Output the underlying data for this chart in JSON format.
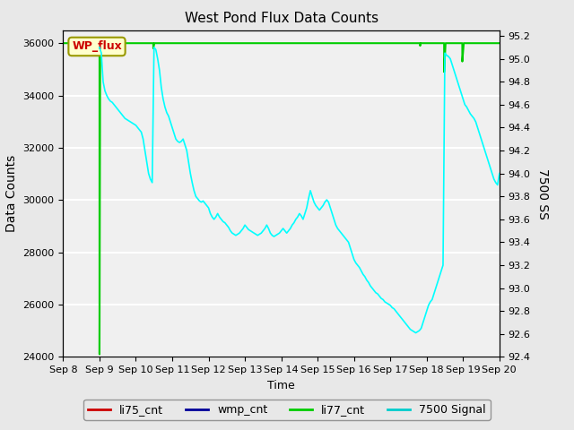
{
  "title": "West Pond Flux Data Counts",
  "xlabel": "Time",
  "ylabel_left": "Data Counts",
  "ylabel_right": "7500 SS",
  "ylim_left": [
    24000,
    36500
  ],
  "ylim_right": [
    92.4,
    95.25
  ],
  "x_tick_labels": [
    "Sep 8",
    "Sep 9",
    "Sep 10",
    "Sep 11",
    "Sep 12",
    "Sep 13",
    "Sep 14",
    "Sep 15",
    "Sep 16",
    "Sep 17",
    "Sep 18",
    "Sep 19",
    "Sep 20"
  ],
  "yticks_left": [
    24000,
    26000,
    28000,
    30000,
    32000,
    34000,
    36000
  ],
  "yticks_right": [
    92.4,
    92.6,
    92.8,
    93.0,
    93.2,
    93.4,
    93.6,
    93.8,
    94.0,
    94.2,
    94.4,
    94.6,
    94.8,
    95.0,
    95.2
  ],
  "bg_color": "#e8e8e8",
  "plot_bg_color": "#f0f0f0",
  "legend_entries": [
    "li75_cnt",
    "wmp_cnt",
    "li77_cnt",
    "7500 Signal"
  ],
  "legend_colors": [
    "#cc0000",
    "#000099",
    "#00cc00",
    "#00cccc"
  ],
  "li77_x": [
    0.0,
    1.0,
    1.0,
    1.02,
    2.48,
    2.48,
    2.51,
    9.82,
    9.82,
    9.84,
    10.48,
    10.48,
    10.52,
    10.98,
    10.98,
    11.02,
    12.0
  ],
  "li77_y": [
    36000,
    36000,
    24100,
    36000,
    36000,
    35800,
    36000,
    36000,
    35900,
    36000,
    36000,
    34900,
    36000,
    36000,
    35300,
    36000,
    36000
  ],
  "signal_x": [
    1.0,
    1.02,
    1.05,
    1.1,
    1.15,
    1.2,
    1.25,
    1.3,
    1.35,
    1.4,
    1.45,
    1.5,
    1.55,
    1.6,
    1.65,
    1.7,
    1.75,
    1.8,
    1.85,
    1.9,
    1.95,
    2.0,
    2.05,
    2.1,
    2.15,
    2.2,
    2.25,
    2.3,
    2.35,
    2.4,
    2.45,
    2.5,
    2.55,
    2.6,
    2.65,
    2.7,
    2.75,
    2.8,
    2.85,
    2.9,
    2.95,
    3.0,
    3.05,
    3.1,
    3.15,
    3.2,
    3.25,
    3.3,
    3.35,
    3.4,
    3.45,
    3.5,
    3.55,
    3.6,
    3.65,
    3.7,
    3.75,
    3.8,
    3.85,
    3.9,
    3.95,
    4.0,
    4.05,
    4.1,
    4.15,
    4.2,
    4.25,
    4.3,
    4.35,
    4.4,
    4.45,
    4.5,
    4.55,
    4.6,
    4.65,
    4.7,
    4.75,
    4.8,
    4.85,
    4.9,
    4.95,
    5.0,
    5.05,
    5.1,
    5.15,
    5.2,
    5.25,
    5.3,
    5.35,
    5.4,
    5.45,
    5.5,
    5.55,
    5.6,
    5.65,
    5.7,
    5.75,
    5.8,
    5.85,
    5.9,
    5.95,
    6.0,
    6.05,
    6.1,
    6.15,
    6.2,
    6.25,
    6.3,
    6.35,
    6.4,
    6.45,
    6.5,
    6.55,
    6.6,
    6.65,
    6.7,
    6.75,
    6.8,
    6.85,
    6.9,
    6.95,
    7.0,
    7.05,
    7.1,
    7.15,
    7.2,
    7.25,
    7.3,
    7.35,
    7.4,
    7.45,
    7.5,
    7.55,
    7.6,
    7.65,
    7.7,
    7.75,
    7.8,
    7.85,
    7.9,
    7.95,
    8.0,
    8.05,
    8.1,
    8.15,
    8.2,
    8.25,
    8.3,
    8.35,
    8.4,
    8.45,
    8.5,
    8.55,
    8.6,
    8.65,
    8.7,
    8.75,
    8.8,
    8.85,
    8.9,
    8.95,
    9.0,
    9.05,
    9.1,
    9.15,
    9.2,
    9.25,
    9.3,
    9.35,
    9.4,
    9.45,
    9.5,
    9.55,
    9.6,
    9.65,
    9.7,
    9.75,
    9.8,
    9.85,
    9.9,
    9.95,
    10.0,
    10.02,
    10.05,
    10.1,
    10.15,
    10.2,
    10.25,
    10.3,
    10.35,
    10.4,
    10.45,
    10.5,
    10.55,
    10.6,
    10.65,
    10.7,
    10.75,
    10.8,
    10.85,
    10.9,
    10.95,
    11.0,
    11.05,
    11.1,
    11.15,
    11.2,
    11.25,
    11.3,
    11.35,
    11.4,
    11.45,
    11.5,
    11.55,
    11.6,
    11.65,
    11.7,
    11.75,
    11.8,
    11.85,
    11.9,
    11.95,
    12.0
  ],
  "signal_y": [
    95.1,
    95.08,
    95.05,
    94.8,
    94.72,
    94.68,
    94.65,
    94.63,
    94.62,
    94.6,
    94.58,
    94.56,
    94.54,
    94.52,
    94.5,
    94.48,
    94.47,
    94.46,
    94.45,
    94.44,
    94.43,
    94.42,
    94.4,
    94.38,
    94.36,
    94.3,
    94.2,
    94.1,
    94.0,
    93.95,
    93.92,
    95.1,
    95.08,
    95.0,
    94.9,
    94.75,
    94.65,
    94.58,
    94.53,
    94.5,
    94.45,
    94.4,
    94.35,
    94.3,
    94.28,
    94.27,
    94.28,
    94.3,
    94.25,
    94.2,
    94.1,
    94.0,
    93.92,
    93.85,
    93.8,
    93.78,
    93.76,
    93.75,
    93.76,
    93.74,
    93.72,
    93.7,
    93.65,
    93.62,
    93.6,
    93.62,
    93.65,
    93.62,
    93.6,
    93.58,
    93.57,
    93.55,
    93.53,
    93.5,
    93.48,
    93.47,
    93.46,
    93.47,
    93.48,
    93.5,
    93.52,
    93.55,
    93.53,
    93.51,
    93.5,
    93.49,
    93.48,
    93.47,
    93.46,
    93.47,
    93.48,
    93.5,
    93.52,
    93.55,
    93.52,
    93.48,
    93.46,
    93.45,
    93.46,
    93.47,
    93.48,
    93.5,
    93.52,
    93.5,
    93.48,
    93.5,
    93.52,
    93.55,
    93.57,
    93.6,
    93.62,
    93.65,
    93.63,
    93.6,
    93.65,
    93.7,
    93.78,
    93.85,
    93.8,
    93.75,
    93.72,
    93.7,
    93.68,
    93.7,
    93.72,
    93.75,
    93.77,
    93.75,
    93.7,
    93.65,
    93.6,
    93.55,
    93.52,
    93.5,
    93.48,
    93.46,
    93.44,
    93.42,
    93.4,
    93.35,
    93.3,
    93.25,
    93.22,
    93.2,
    93.18,
    93.15,
    93.12,
    93.1,
    93.07,
    93.05,
    93.02,
    93.0,
    92.98,
    92.96,
    92.95,
    92.93,
    92.91,
    92.9,
    92.88,
    92.87,
    92.86,
    92.85,
    92.83,
    92.82,
    92.8,
    92.78,
    92.76,
    92.74,
    92.72,
    92.7,
    92.68,
    92.66,
    92.64,
    92.63,
    92.62,
    92.61,
    92.62,
    92.63,
    92.65,
    92.7,
    92.75,
    92.8,
    92.82,
    92.85,
    92.88,
    92.9,
    92.95,
    93.0,
    93.05,
    93.1,
    93.15,
    93.2,
    95.05,
    95.03,
    95.02,
    95.0,
    94.95,
    94.9,
    94.85,
    94.8,
    94.75,
    94.7,
    94.65,
    94.6,
    94.58,
    94.55,
    94.52,
    94.5,
    94.48,
    94.45,
    94.4,
    94.35,
    94.3,
    94.25,
    94.2,
    94.15,
    94.1,
    94.05,
    94.0,
    93.95,
    93.92,
    93.9,
    94.0
  ]
}
